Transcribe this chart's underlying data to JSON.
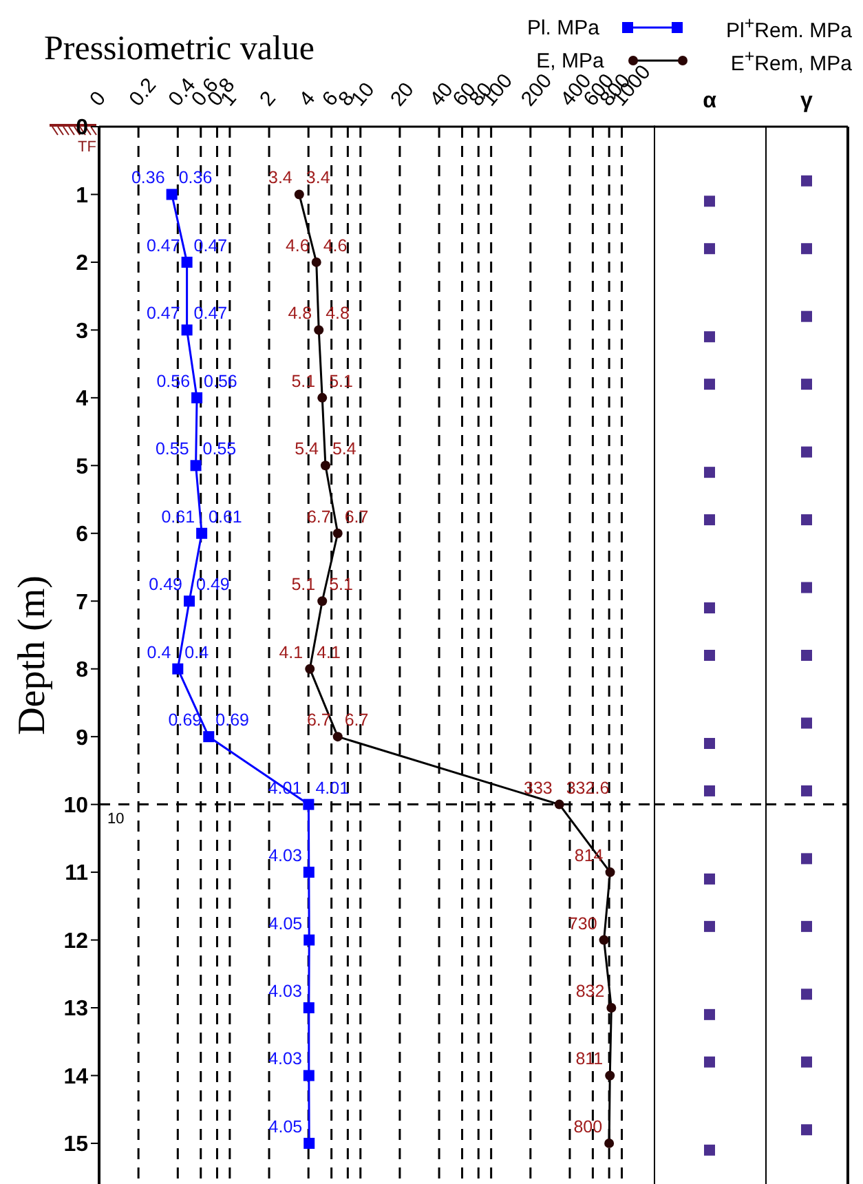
{
  "chart_data": [
    {
      "type": "line",
      "orientation": "horizontal",
      "title": "Pressiometric value",
      "ylabel": "Depth (m)",
      "legend": "top right",
      "grid": "x",
      "log": "x",
      "xlim": [
        0.1,
        1800
      ],
      "xticks": [
        {
          "value": 0.1,
          "label": "0"
        },
        0.2,
        0.4,
        0.6,
        0.8,
        1,
        2,
        4,
        6,
        8,
        10,
        20,
        40,
        60,
        80,
        100,
        200,
        400,
        600,
        800,
        1000
      ],
      "ylim": [
        15.6,
        0
      ],
      "yticks": [
        0,
        1,
        2,
        3,
        4,
        5,
        6,
        7,
        8,
        9,
        10,
        11,
        12,
        13,
        14,
        15
      ],
      "x": [
        1,
        2,
        3,
        4,
        5,
        6,
        7,
        8,
        9,
        10,
        11,
        12,
        13,
        14,
        15
      ],
      "series": [
        {
          "name": "Pl. MPa",
          "color": "#0000ff",
          "marker": "square",
          "values": [
            0.36,
            0.47,
            0.47,
            0.56,
            0.55,
            0.61,
            0.49,
            0.4,
            0.69,
            4.01,
            4.03,
            4.05,
            4.03,
            4.03,
            4.05
          ],
          "value_labels": [
            "0.36",
            "0.47",
            "0.47",
            "0.56",
            "0.55",
            "0.61",
            "0.49",
            "0.4",
            "0.69",
            "4.01",
            "4.03",
            "4.05",
            "4.03",
            "4.03",
            "4.05"
          ]
        },
        {
          "name": "E, MPa",
          "color": "#000000",
          "marker": "circle",
          "values": [
            3.4,
            4.6,
            4.8,
            5.1,
            5.4,
            6.7,
            5.1,
            4.1,
            6.7,
            332.6,
            814,
            730,
            832,
            811,
            800
          ],
          "value_labels": [
            "3.4",
            "4.6",
            "4.8",
            "5.1",
            "5.4",
            "6.7",
            "5.1",
            "4.1",
            "6.7",
            "333",
            "814",
            "730",
            "832",
            "811",
            "800"
          ]
        }
      ],
      "ref_lines": [
        {
          "axis": "y",
          "value": 10,
          "label": "10",
          "line_style": "dashed",
          "color": "#000000"
        }
      ],
      "annotations": [
        "TF",
        "Pl$^{+}$Rem. MPa",
        "E$^{+}$Rem, MPa",
        {
          "text": "0.36",
          "x": 0.36,
          "y": 1
        },
        {
          "text": "0.47",
          "x": 0.47,
          "y": 2
        },
        {
          "text": "0.47",
          "x": 0.47,
          "y": 3
        },
        {
          "text": "0.56",
          "x": 0.56,
          "y": 4
        },
        {
          "text": "0.55",
          "x": 0.55,
          "y": 5
        },
        {
          "text": "0.61",
          "x": 0.61,
          "y": 6
        },
        {
          "text": "0.49",
          "x": 0.49,
          "y": 7
        },
        {
          "text": "0.4",
          "x": 0.4,
          "y": 8
        },
        {
          "text": "0.69",
          "x": 0.69,
          "y": 9
        },
        {
          "text": "4.01",
          "x": 4.01,
          "y": 10
        },
        {
          "text": "3.4",
          "x": 3.4,
          "y": 1
        },
        {
          "text": "4.6",
          "x": 4.6,
          "y": 2
        },
        {
          "text": "4.8",
          "x": 4.8,
          "y": 3
        },
        {
          "text": "5.1",
          "x": 5.1,
          "y": 4
        },
        {
          "text": "5.4",
          "x": 5.4,
          "y": 5
        },
        {
          "text": "6.7",
          "x": 6.7,
          "y": 6
        },
        {
          "text": "5.1",
          "x": 5.1,
          "y": 7
        },
        {
          "text": "4.1",
          "x": 4.1,
          "y": 8
        },
        {
          "text": "6.7",
          "x": 6.7,
          "y": 9
        },
        {
          "text": "332.6",
          "x": 332.6,
          "y": 10
        }
      ]
    },
    {
      "type": "scatter",
      "categories": [
        "α"
      ],
      "marker": "square",
      "tick_labels": "x",
      "ylim": [
        15.6,
        0
      ],
      "yticks": [
        0,
        1,
        2,
        3,
        4,
        5,
        6,
        7,
        8,
        9,
        10,
        11,
        12,
        13,
        14,
        15
      ],
      "series": [
        {
          "color": "#4b2f8f",
          "x": [
            "α",
            "α",
            "α",
            "α",
            "α",
            "α",
            "α",
            "α",
            "α",
            "α",
            "α",
            "α",
            "α",
            "α",
            "α"
          ],
          "values": [
            1.1,
            1.8,
            3.1,
            3.8,
            5.1,
            5.8,
            7.1,
            7.8,
            9.1,
            9.8,
            11.1,
            11.8,
            13.1,
            13.8,
            15.1
          ]
        }
      ],
      "ref_lines": [
        {
          "axis": "y",
          "value": 10,
          "line_style": "dashed",
          "color": "#000000"
        }
      ]
    },
    {
      "type": "scatter",
      "categories": [
        "γ"
      ],
      "marker": "square",
      "tick_labels": "x",
      "ylim": [
        15.6,
        0
      ],
      "yticks": [
        0,
        1,
        2,
        3,
        4,
        5,
        6,
        7,
        8,
        9,
        10,
        11,
        12,
        13,
        14,
        15
      ],
      "series": [
        {
          "color": "#4b2f8f",
          "x": [
            "γ",
            "γ",
            "γ",
            "γ",
            "γ",
            "γ",
            "γ",
            "γ",
            "γ",
            "γ",
            "γ",
            "γ",
            "γ",
            "γ",
            "γ"
          ],
          "values": [
            0.8,
            1.8,
            2.8,
            3.8,
            4.8,
            5.8,
            6.8,
            7.8,
            8.8,
            9.8,
            10.8,
            11.8,
            12.8,
            13.8,
            14.8
          ]
        }
      ],
      "ref_lines": [
        {
          "axis": "y",
          "value": 10,
          "line_style": "dashed",
          "color": "#000000"
        }
      ]
    }
  ]
}
